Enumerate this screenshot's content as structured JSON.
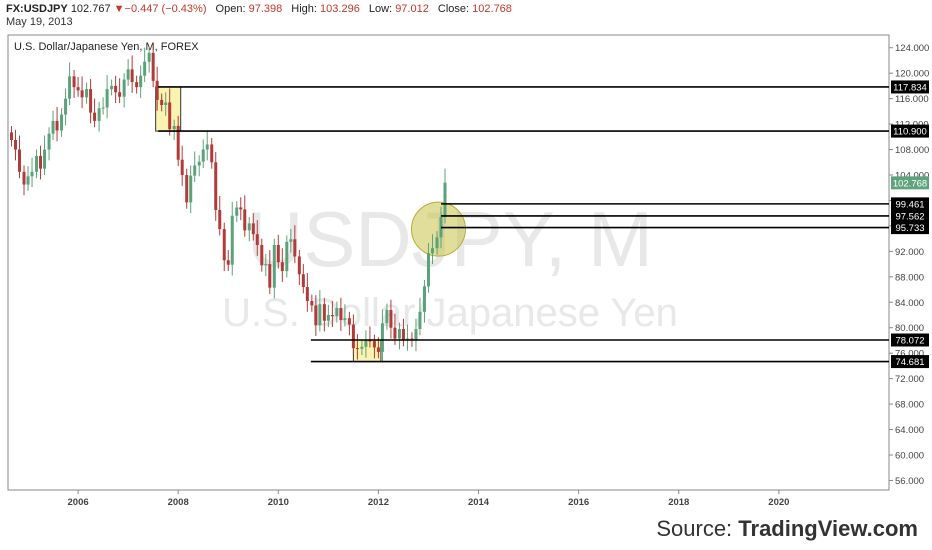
{
  "header": {
    "symbol": "FX:USDJPY",
    "last": "102.767",
    "arrow": "▼",
    "change": "−0.447 (−0.43%)",
    "open_label": "Open:",
    "open": "97.398",
    "high_label": "High:",
    "high": "103.296",
    "low_label": "Low:",
    "low": "97.012",
    "close_label": "Close:",
    "close": "102.768",
    "date": "May 19, 2013"
  },
  "watermark": {
    "line1": "USDJPY, M",
    "line2": "U.S. Dollar/Japanese Yen"
  },
  "source": {
    "prefix": "Source: ",
    "brand": "TradingView.com"
  },
  "colors": {
    "up": "#5aa37a",
    "down": "#b23a3a",
    "highlight": "#fbf3b0",
    "circle": "#c9c24a",
    "last_badge": "#5fa37e"
  },
  "chart_data": {
    "type": "candlestick",
    "title": "U.S. Dollar/Japanese Yen, M, FOREX",
    "x_ticks": [
      "2006",
      "2008",
      "2010",
      "2012",
      "2014",
      "2016",
      "2018",
      "2020"
    ],
    "y_ticks": [
      "56.000",
      "60.000",
      "64.000",
      "68.000",
      "72.000",
      "76.000",
      "80.000",
      "84.000",
      "88.000",
      "92.000",
      "96.000",
      "100.000",
      "104.000",
      "108.000",
      "112.000",
      "116.000",
      "120.000",
      "124.000"
    ],
    "ylim": [
      54.5,
      126
    ],
    "xlim": [
      2004.6,
      2022.2
    ],
    "last_price": "102.768",
    "levels": [
      {
        "label": "117.834",
        "value": 117.834,
        "from": 2007.6
      },
      {
        "label": "110.900",
        "value": 110.9,
        "from": 2007.6
      },
      {
        "label": "99.461",
        "value": 99.461,
        "from": 2013.25
      },
      {
        "label": "97.562",
        "value": 97.562,
        "from": 2013.25
      },
      {
        "label": "95.733",
        "value": 95.733,
        "from": 2013.25
      },
      {
        "label": "78.072",
        "value": 78.072,
        "from": 2010.65
      },
      {
        "label": "74.681",
        "value": 74.681,
        "from": 2010.65
      }
    ],
    "zones": [
      {
        "x0": 2007.55,
        "x1": 2008.05,
        "y0": 110.9,
        "y1": 117.834
      },
      {
        "x0": 2011.5,
        "x1": 2012.05,
        "y0": 74.681,
        "y1": 78.072
      }
    ],
    "circle": {
      "x": 2013.2,
      "y": 95.5
    },
    "closes": [
      [
        2004.67,
        109.5
      ],
      [
        2004.75,
        108.0
      ],
      [
        2004.83,
        104.5
      ],
      [
        2004.92,
        102.5
      ],
      [
        2005.0,
        103.8
      ],
      [
        2005.08,
        104.5
      ],
      [
        2005.17,
        107.0
      ],
      [
        2005.25,
        105.0
      ],
      [
        2005.33,
        108.0
      ],
      [
        2005.42,
        110.5
      ],
      [
        2005.5,
        112.5
      ],
      [
        2005.58,
        111.0
      ],
      [
        2005.67,
        113.5
      ],
      [
        2005.75,
        116.0
      ],
      [
        2005.83,
        119.5
      ],
      [
        2005.92,
        117.8
      ],
      [
        2006.0,
        117.3
      ],
      [
        2006.08,
        116.2
      ],
      [
        2006.17,
        117.5
      ],
      [
        2006.25,
        113.8
      ],
      [
        2006.33,
        112.5
      ],
      [
        2006.42,
        114.5
      ],
      [
        2006.5,
        114.6
      ],
      [
        2006.58,
        117.5
      ],
      [
        2006.67,
        118.0
      ],
      [
        2006.75,
        117.0
      ],
      [
        2006.83,
        116.3
      ],
      [
        2006.92,
        119.0
      ],
      [
        2007.0,
        120.6
      ],
      [
        2007.08,
        118.6
      ],
      [
        2007.17,
        117.8
      ],
      [
        2007.25,
        119.6
      ],
      [
        2007.33,
        121.8
      ],
      [
        2007.42,
        123.2
      ],
      [
        2007.5,
        118.8
      ],
      [
        2007.58,
        115.8
      ],
      [
        2007.67,
        115.0
      ],
      [
        2007.75,
        115.4
      ],
      [
        2007.83,
        111.2
      ],
      [
        2007.92,
        111.7
      ],
      [
        2008.0,
        106.4
      ],
      [
        2008.08,
        104.0
      ],
      [
        2008.17,
        99.7
      ],
      [
        2008.25,
        103.9
      ],
      [
        2008.33,
        105.5
      ],
      [
        2008.42,
        106.1
      ],
      [
        2008.5,
        108.0
      ],
      [
        2008.58,
        108.8
      ],
      [
        2008.67,
        106.0
      ],
      [
        2008.75,
        98.5
      ],
      [
        2008.83,
        95.5
      ],
      [
        2008.92,
        90.6
      ],
      [
        2009.0,
        89.9
      ],
      [
        2009.08,
        97.6
      ],
      [
        2009.17,
        98.9
      ],
      [
        2009.25,
        98.6
      ],
      [
        2009.33,
        95.3
      ],
      [
        2009.42,
        96.4
      ],
      [
        2009.5,
        94.7
      ],
      [
        2009.58,
        93.0
      ],
      [
        2009.67,
        89.8
      ],
      [
        2009.75,
        90.0
      ],
      [
        2009.83,
        86.3
      ],
      [
        2009.92,
        93.0
      ],
      [
        2010.0,
        90.3
      ],
      [
        2010.08,
        88.9
      ],
      [
        2010.17,
        93.5
      ],
      [
        2010.25,
        93.9
      ],
      [
        2010.33,
        91.2
      ],
      [
        2010.42,
        88.4
      ],
      [
        2010.5,
        86.4
      ],
      [
        2010.58,
        84.2
      ],
      [
        2010.67,
        83.5
      ],
      [
        2010.75,
        80.4
      ],
      [
        2010.83,
        83.7
      ],
      [
        2010.92,
        81.1
      ],
      [
        2011.0,
        82.0
      ],
      [
        2011.08,
        81.8
      ],
      [
        2011.17,
        83.1
      ],
      [
        2011.25,
        81.2
      ],
      [
        2011.33,
        81.5
      ],
      [
        2011.42,
        80.5
      ],
      [
        2011.5,
        76.8
      ],
      [
        2011.58,
        76.7
      ],
      [
        2011.67,
        77.0
      ],
      [
        2011.75,
        78.0
      ],
      [
        2011.83,
        77.9
      ],
      [
        2011.92,
        76.9
      ],
      [
        2012.0,
        76.2
      ],
      [
        2012.08,
        80.7
      ],
      [
        2012.17,
        82.8
      ],
      [
        2012.25,
        80.0
      ],
      [
        2012.33,
        78.3
      ],
      [
        2012.42,
        79.8
      ],
      [
        2012.5,
        78.1
      ],
      [
        2012.58,
        78.3
      ],
      [
        2012.67,
        78.0
      ],
      [
        2012.75,
        79.8
      ],
      [
        2012.83,
        82.5
      ],
      [
        2012.92,
        86.5
      ],
      [
        2013.0,
        91.7
      ],
      [
        2013.08,
        92.5
      ],
      [
        2013.17,
        94.2
      ],
      [
        2013.25,
        97.4
      ],
      [
        2013.33,
        102.8
      ]
    ]
  }
}
